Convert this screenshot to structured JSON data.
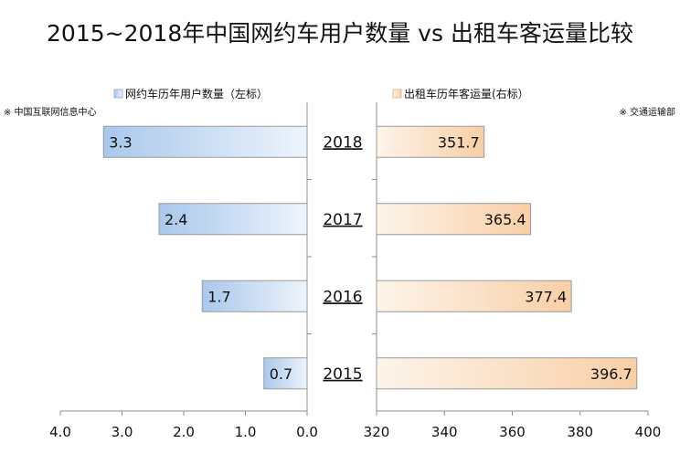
{
  "chart_data": {
    "type": "bar",
    "orientation": "horizontal",
    "layout": "back-to-back",
    "title": "2015~2018年中国网约车用户数量 vs 出租车客运量比较",
    "categories": [
      "2018",
      "2017",
      "2016",
      "2015"
    ],
    "left": {
      "legend": "网约车历年用户数量（左标）",
      "source": "※ 中国互联网信息中心",
      "values": [
        3.3,
        2.4,
        1.7,
        0.7
      ],
      "labels": [
        "3.3",
        "2.4",
        "1.7",
        "0.7"
      ],
      "xlim": [
        4.0,
        0.0
      ],
      "ticks": [
        "4.0",
        "3.0",
        "2.0",
        "1.0",
        "0.0"
      ],
      "tick_values": [
        4,
        3,
        2,
        1,
        0
      ],
      "color_start": "#a9c8ec",
      "color_end": "#eef4fc",
      "border_color": "#9a9a9a"
    },
    "right": {
      "legend": "出租车历年客运量(右标）",
      "source": "※ 交通运输部",
      "values": [
        351.7,
        365.4,
        377.4,
        396.7
      ],
      "labels": [
        "351.7",
        "365.4",
        "377.4",
        "396.7"
      ],
      "xlim": [
        320,
        400
      ],
      "ticks": [
        "320",
        "340",
        "360",
        "380",
        "400"
      ],
      "tick_values": [
        320,
        340,
        360,
        380,
        400
      ],
      "color_start": "#fdf4ea",
      "color_end": "#f8cfa6",
      "border_color": "#9a9a9a"
    },
    "legend_position": "top",
    "grid": false
  }
}
